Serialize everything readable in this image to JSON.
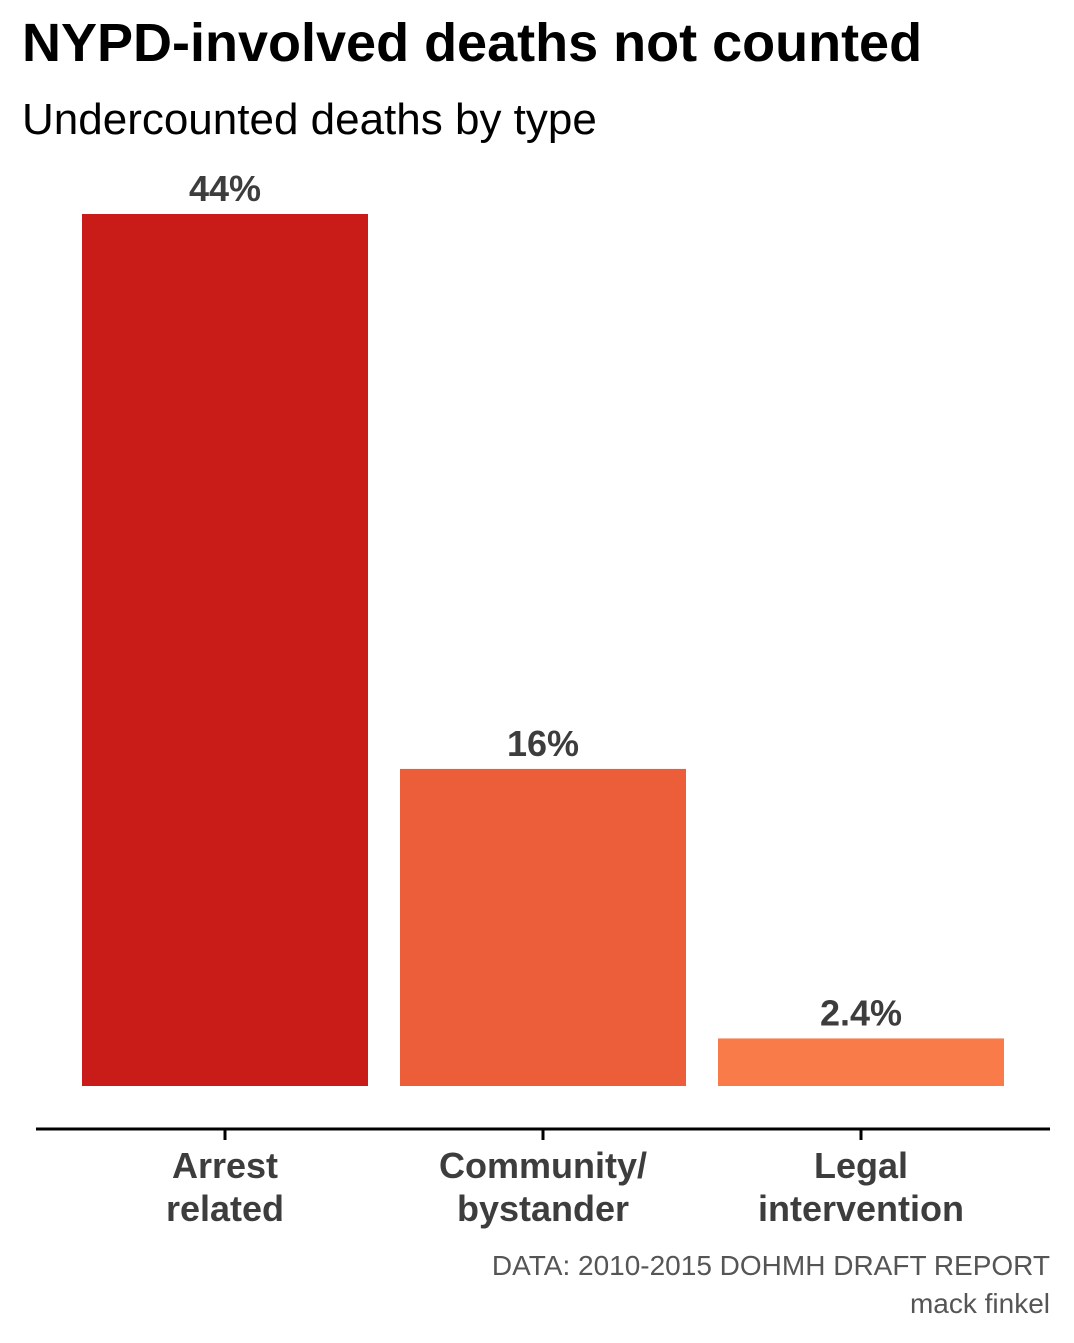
{
  "chart_data": {
    "type": "bar",
    "title": "NYPD-involved deaths not counted",
    "subtitle": "Undercounted deaths by type",
    "categories": [
      [
        "Arrest",
        "related"
      ],
      [
        "Community/",
        "bystander"
      ],
      [
        "Legal",
        "intervention"
      ]
    ],
    "values": [
      44,
      16,
      2.4
    ],
    "value_labels": [
      "44%",
      "16%",
      "2.4%"
    ],
    "colors": [
      "#c91b18",
      "#ec5e39",
      "#f97b4a"
    ],
    "ylim": [
      0,
      44
    ],
    "grid": false,
    "caption": [
      "DATA: 2010-2015 DOHMH DRAFT REPORT",
      "mack finkel"
    ]
  }
}
